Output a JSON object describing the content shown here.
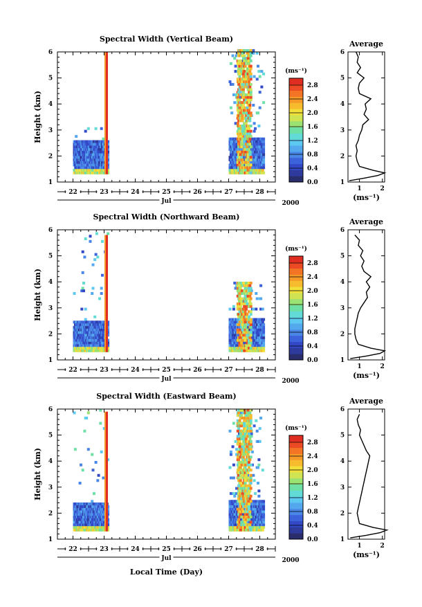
{
  "chart_data": [
    {
      "type": "heatmap",
      "title": "Spectral Width (Vertical Beam)",
      "ylabel": "Height (km)",
      "ylim": [
        1,
        6
      ],
      "yticks": [
        "1",
        "2",
        "3",
        "4",
        "5",
        "6"
      ],
      "xticks": [
        "22",
        "23",
        "24",
        "25",
        "26",
        "27",
        "28"
      ],
      "month_label": "Jul",
      "year_label": "2000",
      "colorbar": {
        "unit": "(ms⁻¹)",
        "ticks": [
          "0.0",
          "0.4",
          "0.8",
          "1.2",
          "1.6",
          "2.0",
          "2.4",
          "2.8"
        ],
        "range": [
          0,
          3.0
        ]
      },
      "data_windows": [
        {
          "day_start": 22.0,
          "day_end": 23.1,
          "top_km": 2.6,
          "sparse_top_km": 3.1
        },
        {
          "day_start": 27.0,
          "day_end": 28.1,
          "top_km": 2.7,
          "sparse_top_km": 6.0
        }
      ],
      "spike": {
        "day": 23.1,
        "top_km": 6.0,
        "value": 2.9
      },
      "profile": {
        "title": "Average",
        "xlabel": "(ms⁻¹)",
        "xticks": [
          "1",
          "2"
        ],
        "xlim": [
          0.5,
          2.1
        ],
        "ylim": [
          1,
          6
        ],
        "height": [
          1.05,
          1.15,
          1.25,
          1.35,
          1.45,
          1.6,
          1.8,
          2.0,
          2.2,
          2.4,
          2.6,
          2.8,
          3.0,
          3.2,
          3.4,
          3.6,
          3.8,
          4.0,
          4.2,
          4.4,
          4.6,
          4.8,
          5.0,
          5.2,
          5.4,
          5.6,
          5.8,
          6.0
        ],
        "values": [
          0.55,
          1.2,
          1.8,
          2.1,
          1.6,
          1.0,
          0.9,
          0.85,
          0.9,
          0.85,
          0.95,
          1.0,
          1.1,
          1.15,
          1.4,
          1.2,
          1.3,
          1.25,
          1.5,
          1.0,
          0.95,
          1.0,
          1.2,
          0.9,
          1.05,
          0.9,
          0.95,
          0.85
        ]
      }
    },
    {
      "type": "heatmap",
      "title": "Spectral Width (Northward Beam)",
      "ylabel": "Height (km)",
      "ylim": [
        1,
        6
      ],
      "yticks": [
        "1",
        "2",
        "3",
        "4",
        "5",
        "6"
      ],
      "xticks": [
        "22",
        "23",
        "24",
        "25",
        "26",
        "27",
        "28"
      ],
      "month_label": "Jul",
      "year_label": "2000",
      "colorbar": {
        "unit": "(ms⁻¹)",
        "ticks": [
          "0.0",
          "0.4",
          "0.8",
          "1.2",
          "1.6",
          "2.0",
          "2.4",
          "2.8"
        ],
        "range": [
          0,
          3.0
        ]
      },
      "data_windows": [
        {
          "day_start": 22.0,
          "day_end": 23.1,
          "top_km": 2.5,
          "sparse_top_km": 5.8
        },
        {
          "day_start": 27.0,
          "day_end": 28.1,
          "top_km": 2.6,
          "sparse_top_km": 4.0
        }
      ],
      "spike": {
        "day": 23.1,
        "top_km": 5.8,
        "value": 2.9
      },
      "profile": {
        "title": "Average",
        "xlabel": "(ms⁻¹)",
        "xticks": [
          "1",
          "2"
        ],
        "xlim": [
          0.5,
          2.1
        ],
        "ylim": [
          1,
          6
        ],
        "height": [
          1.05,
          1.15,
          1.25,
          1.35,
          1.45,
          1.6,
          1.8,
          2.0,
          2.2,
          2.4,
          2.6,
          2.8,
          3.0,
          3.2,
          3.4,
          3.6,
          3.8,
          4.0,
          4.2,
          4.4,
          4.6,
          4.8,
          5.0,
          5.2,
          5.4,
          5.6,
          5.8
        ],
        "values": [
          0.6,
          1.3,
          1.9,
          2.1,
          1.5,
          0.95,
          0.85,
          0.8,
          0.8,
          0.85,
          0.9,
          0.95,
          1.05,
          1.2,
          1.35,
          1.3,
          1.45,
          1.3,
          1.5,
          1.2,
          1.1,
          1.2,
          1.05,
          1.15,
          0.95,
          1.0,
          0.8
        ]
      }
    },
    {
      "type": "heatmap",
      "title": "Spectral Width (Eastward Beam)",
      "ylabel": "Height (km)",
      "xlabel": "Local Time (Day)",
      "ylim": [
        1,
        6
      ],
      "yticks": [
        "1",
        "2",
        "3",
        "4",
        "5",
        "6"
      ],
      "xticks": [
        "22",
        "23",
        "24",
        "25",
        "26",
        "27",
        "28"
      ],
      "month_label": "Jul",
      "year_label": "2000",
      "colorbar": {
        "unit": "(ms⁻¹)",
        "ticks": [
          "0.0",
          "0.4",
          "0.8",
          "1.2",
          "1.6",
          "2.0",
          "2.4",
          "2.8"
        ],
        "range": [
          0,
          3.0
        ]
      },
      "data_windows": [
        {
          "day_start": 22.0,
          "day_end": 23.1,
          "top_km": 2.4,
          "sparse_top_km": 5.9
        },
        {
          "day_start": 27.0,
          "day_end": 28.1,
          "top_km": 2.5,
          "sparse_top_km": 5.9
        }
      ],
      "spike": {
        "day": 23.1,
        "top_km": 5.9,
        "value": 2.9
      },
      "profile": {
        "title": "Average",
        "xlabel": "(ms⁻¹)",
        "xticks": [
          "1",
          "2"
        ],
        "xlim": [
          0.5,
          2.1
        ],
        "ylim": [
          1,
          6
        ],
        "height": [
          1.05,
          1.15,
          1.25,
          1.35,
          1.45,
          1.6,
          1.8,
          2.0,
          2.2,
          2.4,
          2.6,
          2.8,
          3.0,
          3.2,
          3.4,
          3.6,
          3.8,
          4.0,
          4.2,
          4.4,
          4.6,
          4.8,
          5.0,
          5.2,
          5.4,
          5.6,
          5.8
        ],
        "values": [
          0.6,
          1.3,
          1.9,
          2.2,
          1.6,
          1.0,
          0.95,
          0.9,
          0.95,
          1.0,
          1.05,
          1.1,
          1.15,
          1.2,
          1.25,
          1.3,
          1.35,
          1.4,
          1.45,
          1.3,
          1.2,
          1.1,
          1.0,
          1.05,
          0.95,
          0.9,
          1.0
        ]
      }
    }
  ]
}
